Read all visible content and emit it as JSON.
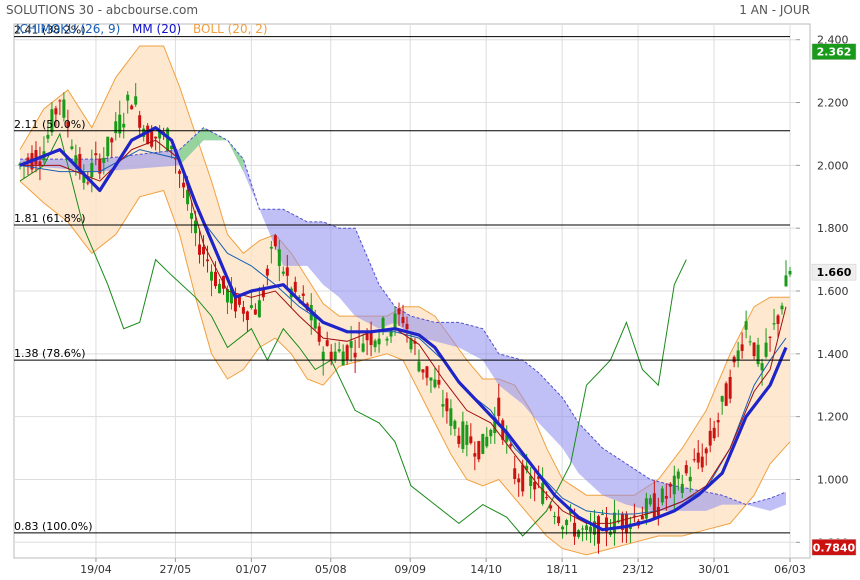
{
  "header": {
    "title": "SOLUTIONS 30 - abcbourse.com",
    "period": "1 AN - JOUR"
  },
  "legend": [
    {
      "label": "ICHIMOKU (26, 9)",
      "color": "#1a5fb4"
    },
    {
      "label": "MM (20)",
      "color": "#1010cc"
    },
    {
      "label": "BOLL (20, 2)",
      "color": "#f0a040"
    }
  ],
  "chart_data": {
    "type": "line",
    "ylim": [
      0.75,
      2.45
    ],
    "y_ticks": [
      "2.400",
      "2.200",
      "2.000",
      "1.800",
      "1.600",
      "1.400",
      "1.200",
      "1.000",
      "0.800"
    ],
    "x_ticks": [
      "19/04",
      "27/05",
      "01/07",
      "05/08",
      "09/09",
      "14/10",
      "18/11",
      "23/12",
      "30/01",
      "06/03"
    ],
    "fibonacci": [
      {
        "value": 2.41,
        "label": "2.41  (38.2%)"
      },
      {
        "value": 2.11,
        "label": "2.11  (50.0%)"
      },
      {
        "value": 1.81,
        "label": "1.81  (61.8%)"
      },
      {
        "value": 1.38,
        "label": "1.38  (78.6%)"
      },
      {
        "value": 0.83,
        "label": "0.83  (100.0%)"
      }
    ],
    "price_badges": [
      {
        "value": 2.362,
        "label": "2.362",
        "bg": "#1a9a1a",
        "fg": "#ffffff"
      },
      {
        "value": 1.66,
        "label": "1.660",
        "bg": "#eeeeee",
        "fg": "#000000"
      },
      {
        "value": 0.784,
        "label": "0.7840",
        "bg": "#cc1111",
        "fg": "#ffffff"
      }
    ],
    "colors": {
      "up": "#1a9a1a",
      "down": "#cc1111",
      "mm": "#1f24c8",
      "boll": "#f0a040",
      "boll_fill": "#fde2c0",
      "kijun": "#a01010",
      "tenkan": "#1a5fb4",
      "chikou": "#1a8a1a",
      "cloud_bear": "#8c8cf0",
      "cloud_bull": "#8cdc8c",
      "grid": "#dddddd"
    },
    "close_path": [
      [
        0,
        2.0
      ],
      [
        6,
        2.05
      ],
      [
        10,
        2.22
      ],
      [
        16,
        1.95
      ],
      [
        22,
        2.05
      ],
      [
        28,
        2.22
      ],
      [
        32,
        2.1
      ],
      [
        38,
        2.08
      ],
      [
        44,
        1.78
      ],
      [
        50,
        1.62
      ],
      [
        55,
        1.55
      ],
      [
        60,
        1.55
      ],
      [
        64,
        1.75
      ],
      [
        68,
        1.6
      ],
      [
        72,
        1.55
      ],
      [
        76,
        1.42
      ],
      [
        80,
        1.4
      ],
      [
        86,
        1.45
      ],
      [
        92,
        1.48
      ],
      [
        96,
        1.52
      ],
      [
        100,
        1.38
      ],
      [
        104,
        1.3
      ],
      [
        110,
        1.15
      ],
      [
        116,
        1.1
      ],
      [
        120,
        1.22
      ],
      [
        124,
        1.02
      ],
      [
        130,
        0.98
      ],
      [
        136,
        0.88
      ],
      [
        142,
        0.82
      ],
      [
        148,
        0.86
      ],
      [
        154,
        0.88
      ],
      [
        160,
        0.92
      ],
      [
        166,
        1.0
      ],
      [
        172,
        1.08
      ],
      [
        178,
        1.3
      ],
      [
        182,
        1.5
      ],
      [
        186,
        1.35
      ],
      [
        190,
        1.52
      ],
      [
        193,
        1.66
      ]
    ],
    "mm_path": [
      [
        0,
        2.0
      ],
      [
        10,
        2.05
      ],
      [
        20,
        1.92
      ],
      [
        28,
        2.08
      ],
      [
        34,
        2.12
      ],
      [
        38,
        2.08
      ],
      [
        44,
        1.88
      ],
      [
        50,
        1.7
      ],
      [
        54,
        1.58
      ],
      [
        58,
        1.6
      ],
      [
        62,
        1.61
      ],
      [
        66,
        1.62
      ],
      [
        70,
        1.57
      ],
      [
        76,
        1.5
      ],
      [
        82,
        1.47
      ],
      [
        88,
        1.47
      ],
      [
        94,
        1.48
      ],
      [
        100,
        1.46
      ],
      [
        104,
        1.42
      ],
      [
        110,
        1.31
      ],
      [
        116,
        1.23
      ],
      [
        122,
        1.15
      ],
      [
        128,
        1.05
      ],
      [
        134,
        0.95
      ],
      [
        140,
        0.88
      ],
      [
        146,
        0.84
      ],
      [
        152,
        0.85
      ],
      [
        158,
        0.87
      ],
      [
        164,
        0.9
      ],
      [
        170,
        0.95
      ],
      [
        176,
        1.02
      ],
      [
        182,
        1.2
      ],
      [
        188,
        1.3
      ],
      [
        192,
        1.42
      ]
    ],
    "kijun_path": [
      [
        0,
        2.0
      ],
      [
        10,
        2.0
      ],
      [
        20,
        1.95
      ],
      [
        28,
        2.05
      ],
      [
        34,
        2.08
      ],
      [
        40,
        2.02
      ],
      [
        46,
        1.75
      ],
      [
        52,
        1.6
      ],
      [
        58,
        1.58
      ],
      [
        64,
        1.6
      ],
      [
        70,
        1.52
      ],
      [
        76,
        1.45
      ],
      [
        82,
        1.44
      ],
      [
        88,
        1.47
      ],
      [
        94,
        1.48
      ],
      [
        100,
        1.43
      ],
      [
        106,
        1.32
      ],
      [
        112,
        1.22
      ],
      [
        118,
        1.18
      ],
      [
        124,
        1.08
      ],
      [
        130,
        0.98
      ],
      [
        136,
        0.9
      ],
      [
        142,
        0.86
      ],
      [
        148,
        0.86
      ],
      [
        154,
        0.88
      ],
      [
        160,
        0.9
      ],
      [
        166,
        0.93
      ],
      [
        172,
        0.98
      ],
      [
        178,
        1.1
      ],
      [
        184,
        1.28
      ],
      [
        188,
        1.35
      ],
      [
        192,
        1.55
      ]
    ],
    "tenkan_path": [
      [
        0,
        2.0
      ],
      [
        10,
        1.98
      ],
      [
        20,
        1.98
      ],
      [
        30,
        2.05
      ],
      [
        40,
        2.02
      ],
      [
        46,
        1.82
      ],
      [
        52,
        1.72
      ],
      [
        58,
        1.68
      ],
      [
        64,
        1.62
      ],
      [
        70,
        1.55
      ],
      [
        76,
        1.5
      ],
      [
        82,
        1.47
      ],
      [
        88,
        1.47
      ],
      [
        94,
        1.47
      ],
      [
        100,
        1.45
      ],
      [
        106,
        1.38
      ],
      [
        112,
        1.28
      ],
      [
        118,
        1.22
      ],
      [
        124,
        1.1
      ],
      [
        130,
        1.02
      ],
      [
        136,
        0.94
      ],
      [
        142,
        0.9
      ],
      [
        148,
        0.89
      ],
      [
        154,
        0.89
      ],
      [
        160,
        0.9
      ],
      [
        166,
        0.93
      ],
      [
        172,
        0.97
      ],
      [
        178,
        1.1
      ],
      [
        184,
        1.3
      ],
      [
        188,
        1.38
      ],
      [
        192,
        1.45
      ]
    ],
    "chikou_path": [
      [
        0,
        1.95
      ],
      [
        6,
        2.0
      ],
      [
        10,
        2.1
      ],
      [
        16,
        1.8
      ],
      [
        22,
        1.62
      ],
      [
        26,
        1.48
      ],
      [
        30,
        1.5
      ],
      [
        34,
        1.7
      ],
      [
        38,
        1.65
      ],
      [
        44,
        1.58
      ],
      [
        48,
        1.52
      ],
      [
        52,
        1.42
      ],
      [
        58,
        1.48
      ],
      [
        62,
        1.38
      ],
      [
        66,
        1.48
      ],
      [
        70,
        1.42
      ],
      [
        74,
        1.35
      ],
      [
        78,
        1.38
      ],
      [
        84,
        1.22
      ],
      [
        90,
        1.18
      ],
      [
        94,
        1.12
      ],
      [
        98,
        0.98
      ],
      [
        104,
        0.92
      ],
      [
        110,
        0.86
      ],
      [
        116,
        0.92
      ],
      [
        122,
        0.88
      ],
      [
        126,
        0.82
      ],
      [
        132,
        0.9
      ],
      [
        138,
        1.05
      ],
      [
        142,
        1.3
      ],
      [
        148,
        1.38
      ],
      [
        152,
        1.5
      ],
      [
        156,
        1.35
      ],
      [
        160,
        1.3
      ],
      [
        164,
        1.62
      ],
      [
        167,
        1.7
      ]
    ],
    "boll_upper_path": [
      [
        0,
        2.05
      ],
      [
        6,
        2.18
      ],
      [
        12,
        2.24
      ],
      [
        18,
        2.12
      ],
      [
        24,
        2.28
      ],
      [
        30,
        2.38
      ],
      [
        36,
        2.38
      ],
      [
        40,
        2.25
      ],
      [
        44,
        2.1
      ],
      [
        48,
        1.95
      ],
      [
        52,
        1.78
      ],
      [
        56,
        1.72
      ],
      [
        60,
        1.76
      ],
      [
        64,
        1.78
      ],
      [
        68,
        1.72
      ],
      [
        72,
        1.64
      ],
      [
        76,
        1.56
      ],
      [
        80,
        1.52
      ],
      [
        86,
        1.52
      ],
      [
        92,
        1.52
      ],
      [
        96,
        1.55
      ],
      [
        100,
        1.55
      ],
      [
        104,
        1.52
      ],
      [
        108,
        1.45
      ],
      [
        112,
        1.38
      ],
      [
        116,
        1.32
      ],
      [
        120,
        1.32
      ],
      [
        124,
        1.3
      ],
      [
        128,
        1.22
      ],
      [
        132,
        1.1
      ],
      [
        136,
        1.0
      ],
      [
        142,
        0.95
      ],
      [
        148,
        0.95
      ],
      [
        154,
        0.95
      ],
      [
        160,
        1.0
      ],
      [
        166,
        1.1
      ],
      [
        172,
        1.22
      ],
      [
        178,
        1.4
      ],
      [
        184,
        1.55
      ],
      [
        188,
        1.58
      ],
      [
        193,
        1.58
      ]
    ],
    "boll_lower_path": [
      [
        0,
        1.95
      ],
      [
        6,
        1.88
      ],
      [
        12,
        1.82
      ],
      [
        18,
        1.72
      ],
      [
        24,
        1.78
      ],
      [
        30,
        1.9
      ],
      [
        36,
        1.92
      ],
      [
        40,
        1.78
      ],
      [
        44,
        1.58
      ],
      [
        48,
        1.4
      ],
      [
        52,
        1.32
      ],
      [
        56,
        1.35
      ],
      [
        60,
        1.42
      ],
      [
        64,
        1.45
      ],
      [
        68,
        1.4
      ],
      [
        72,
        1.32
      ],
      [
        76,
        1.3
      ],
      [
        80,
        1.36
      ],
      [
        86,
        1.38
      ],
      [
        92,
        1.4
      ],
      [
        96,
        1.38
      ],
      [
        100,
        1.28
      ],
      [
        104,
        1.18
      ],
      [
        108,
        1.08
      ],
      [
        112,
        1.0
      ],
      [
        116,
        0.98
      ],
      [
        120,
        1.0
      ],
      [
        124,
        0.94
      ],
      [
        128,
        0.88
      ],
      [
        132,
        0.82
      ],
      [
        136,
        0.78
      ],
      [
        142,
        0.76
      ],
      [
        148,
        0.78
      ],
      [
        154,
        0.8
      ],
      [
        160,
        0.82
      ],
      [
        166,
        0.82
      ],
      [
        172,
        0.84
      ],
      [
        178,
        0.86
      ],
      [
        184,
        0.95
      ],
      [
        188,
        1.05
      ],
      [
        193,
        1.12
      ]
    ],
    "cloud_top_path": [
      [
        0,
        2.02
      ],
      [
        20,
        2.02
      ],
      [
        40,
        2.05
      ],
      [
        46,
        2.12
      ],
      [
        52,
        2.08
      ],
      [
        56,
        2.02
      ],
      [
        60,
        1.86
      ],
      [
        66,
        1.86
      ],
      [
        72,
        1.82
      ],
      [
        76,
        1.82
      ],
      [
        80,
        1.8
      ],
      [
        84,
        1.8
      ],
      [
        90,
        1.62
      ],
      [
        94,
        1.55
      ],
      [
        98,
        1.52
      ],
      [
        104,
        1.5
      ],
      [
        110,
        1.5
      ],
      [
        116,
        1.48
      ],
      [
        120,
        1.4
      ],
      [
        126,
        1.38
      ],
      [
        130,
        1.34
      ],
      [
        136,
        1.26
      ],
      [
        140,
        1.18
      ],
      [
        146,
        1.1
      ],
      [
        152,
        1.05
      ],
      [
        158,
        1.0
      ],
      [
        164,
        0.98
      ],
      [
        168,
        0.97
      ],
      [
        172,
        0.96
      ],
      [
        176,
        0.95
      ],
      [
        182,
        0.92
      ],
      [
        188,
        0.94
      ],
      [
        192,
        0.96
      ]
    ],
    "cloud_bottom_path": [
      [
        0,
        2.0
      ],
      [
        20,
        1.98
      ],
      [
        40,
        2.0
      ],
      [
        46,
        2.08
      ],
      [
        52,
        2.08
      ],
      [
        56,
        1.98
      ],
      [
        60,
        1.86
      ],
      [
        66,
        1.68
      ],
      [
        72,
        1.68
      ],
      [
        76,
        1.62
      ],
      [
        80,
        1.58
      ],
      [
        84,
        1.52
      ],
      [
        90,
        1.48
      ],
      [
        94,
        1.5
      ],
      [
        98,
        1.46
      ],
      [
        104,
        1.44
      ],
      [
        110,
        1.42
      ],
      [
        116,
        1.38
      ],
      [
        120,
        1.3
      ],
      [
        126,
        1.24
      ],
      [
        130,
        1.18
      ],
      [
        136,
        1.1
      ],
      [
        140,
        1.02
      ],
      [
        146,
        0.95
      ],
      [
        152,
        0.92
      ],
      [
        158,
        0.9
      ],
      [
        164,
        0.9
      ],
      [
        168,
        0.9
      ],
      [
        172,
        0.9
      ],
      [
        176,
        0.92
      ],
      [
        182,
        0.92
      ],
      [
        188,
        0.9
      ],
      [
        192,
        0.92
      ]
    ]
  }
}
